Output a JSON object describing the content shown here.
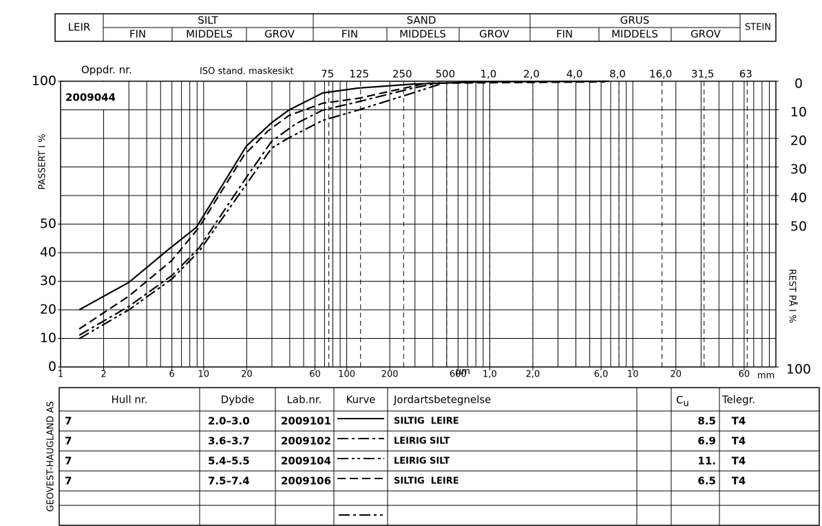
{
  "header": {
    "leir": "LEIR",
    "silt": "SILT",
    "sand": "SAND",
    "grus": "GRUS",
    "stein": "STEIN",
    "fin": "FIN",
    "middels": "MIDDELS",
    "grov": "GROV"
  },
  "chart_data": {
    "type": "line",
    "project_label": "Oppdr. nr.",
    "project_number": "2009044",
    "sieve_label": "ISO stand. maskesikt",
    "ylabel": "PASSERT I %",
    "y2label": "REST PÅ I %",
    "x_unit_small": "µm",
    "x_unit_large": "mm",
    "xscale": "log",
    "xlim": [
      0.001,
      100
    ],
    "xticks": [
      {
        "value": 0.001,
        "label": "1"
      },
      {
        "value": 0.002,
        "label": "2"
      },
      {
        "value": 0.006,
        "label": "6"
      },
      {
        "value": 0.01,
        "label": "10"
      },
      {
        "value": 0.02,
        "label": "20"
      },
      {
        "value": 0.06,
        "label": "60"
      },
      {
        "value": 0.1,
        "label": "100"
      },
      {
        "value": 0.2,
        "label": "200"
      },
      {
        "value": 0.6,
        "label": "600"
      },
      {
        "value": 1,
        "label": "1,0"
      },
      {
        "value": 2,
        "label": "2,0"
      },
      {
        "value": 6,
        "label": "6,0"
      },
      10,
      20,
      60
    ],
    "sieve_ticks": [
      {
        "value": 0.075,
        "label": "75"
      },
      {
        "value": 0.125,
        "label": "125"
      },
      {
        "value": 0.25,
        "label": "250"
      },
      {
        "value": 0.5,
        "label": "500"
      },
      {
        "value": 1,
        "label": "1,0"
      },
      {
        "value": 2,
        "label": "2,0"
      },
      {
        "value": 4,
        "label": "4,0"
      },
      {
        "value": 8,
        "label": "8,0"
      },
      {
        "value": 16,
        "label": "16,0"
      },
      {
        "value": 31.5,
        "label": "31,5"
      },
      63
    ],
    "xgrid": [
      0.001,
      0.002,
      0.003,
      0.004,
      0.005,
      0.006,
      0.007,
      0.008,
      0.009,
      0.01,
      0.02,
      0.03,
      0.04,
      0.05,
      0.06,
      0.07,
      0.08,
      0.09,
      0.1,
      0.2,
      0.3,
      0.4,
      0.5,
      0.6,
      0.7,
      0.8,
      0.9,
      1,
      2,
      3,
      4,
      5,
      6,
      7,
      8,
      9,
      10,
      20,
      30,
      40,
      50,
      60,
      70,
      80,
      90,
      100
    ],
    "ylim": [
      0,
      100
    ],
    "yticks": [
      0,
      10,
      20,
      30,
      40,
      50,
      100
    ],
    "ygrid": [
      0,
      10,
      20,
      30,
      40,
      50,
      60,
      70,
      80,
      90,
      100
    ],
    "y2lim": [
      100,
      0
    ],
    "y2ticks": [
      0,
      10,
      20,
      30,
      40,
      50,
      100
    ],
    "grid": true,
    "series": [
      {
        "name": "2009101",
        "color": "#000000",
        "dash": "solid",
        "x": [
          0.00135,
          0.003,
          0.0057,
          0.0089,
          0.0199,
          0.0299,
          0.0394,
          0.068,
          0.12,
          0.29,
          0.88,
          6.8
        ],
        "values": [
          20,
          29.6,
          41.2,
          48.9,
          77.3,
          85.5,
          89.9,
          95.9,
          97.6,
          99,
          99.8,
          100
        ]
      },
      {
        "name": "2009102",
        "color": "#000000",
        "dash": "dashdot",
        "x": [
          0.00135,
          0.003,
          0.006,
          0.0093,
          0.0203,
          0.0299,
          0.044,
          0.068,
          0.12,
          0.29,
          0.45
        ],
        "values": [
          11.1,
          21.2,
          32.0,
          41.7,
          67.0,
          79.0,
          85.1,
          89.9,
          92.8,
          97.6,
          99.5
        ]
      },
      {
        "name": "2009104",
        "color": "#000000",
        "dash": "dashdotdot",
        "x": [
          0.00135,
          0.003,
          0.006,
          0.0093,
          0.0203,
          0.0299,
          0.0394,
          0.068,
          0.12,
          0.29,
          0.45
        ],
        "values": [
          9.9,
          20.0,
          30.8,
          40.5,
          64.6,
          76.6,
          80.2,
          86.3,
          89.9,
          95.9,
          99.0
        ]
      },
      {
        "name": "2009106",
        "color": "#000000",
        "dash": "dashed",
        "x": [
          0.00135,
          0.003,
          0.006,
          0.0093,
          0.0192,
          0.0283,
          0.0394,
          0.068,
          0.12,
          0.36,
          6.42
        ],
        "values": [
          13.3,
          24.8,
          37.3,
          48.9,
          74.2,
          82.7,
          88.0,
          92.3,
          94.0,
          99.3,
          99.8
        ]
      }
    ]
  },
  "table": {
    "company": "GEOVEST-HAUGLAND AS",
    "columns": [
      "Hull nr.",
      "Dybde",
      "Lab.nr.",
      "Kurve",
      "Jordartsbetegnelse"
    ],
    "cu_header": {
      "symbol": "C",
      "subscript": "u"
    },
    "telegr_header": "Telegr.",
    "rows": [
      {
        "hole": "7",
        "depth": "2.0–3.0",
        "soil": "SILTIG  LEIRE",
        "cu": "8.5",
        "telegr": "T4"
      },
      {
        "hole": "7",
        "depth": "3.6–3.7",
        "soil": "LEIRIG SILT",
        "cu": "6.9",
        "telegr": "T4"
      },
      {
        "hole": "7",
        "depth": "5.4–5.5",
        "soil": "LEIRIG SILT",
        "cu": "11.",
        "telegr": "T4"
      },
      {
        "hole": "7",
        "depth": "7.5–7.4",
        "soil": "SILTIG  LEIRE",
        "cu": "6.5",
        "telegr": "T4"
      }
    ]
  }
}
